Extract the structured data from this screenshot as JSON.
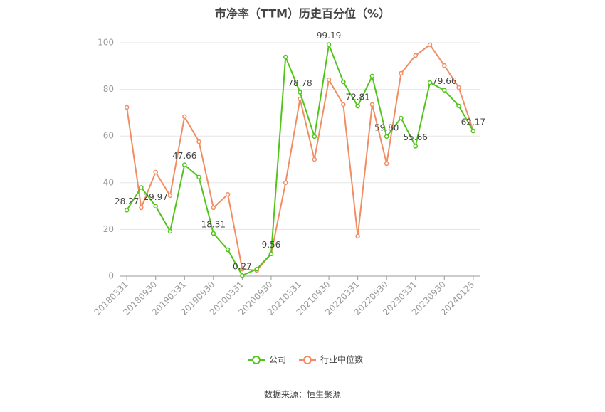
{
  "chart_data": {
    "type": "line",
    "title": "市净率（TTM）历史百分位（%）",
    "source": "数据来源：恒生聚源",
    "categories": [
      "20180331",
      null,
      "20180930",
      null,
      "20190331",
      null,
      "20190930",
      null,
      "20200331",
      null,
      "20200930",
      null,
      "20210331",
      null,
      "20210930",
      null,
      "20220331",
      null,
      "20220930",
      null,
      "20230331",
      null,
      "20230930",
      null,
      "20240125"
    ],
    "series": [
      {
        "name": "公司",
        "color": "#52c41a",
        "values": [
          28.27,
          38,
          29.97,
          19.2,
          47.66,
          42.4,
          18.31,
          11.3,
          0.27,
          3,
          9.56,
          93.9,
          78.78,
          59.8,
          99.19,
          83.2,
          72.81,
          85.7,
          59.8,
          67.7,
          55.66,
          82.9,
          79.66,
          72.9,
          62.17
        ],
        "value_labels": [
          "28.27",
          null,
          "29.97",
          null,
          "47.66",
          null,
          "18.31",
          null,
          "0.27",
          null,
          "9.56",
          null,
          "78.78",
          null,
          "99.19",
          null,
          "72.81",
          null,
          "59.80",
          null,
          "55.66",
          null,
          "79.66",
          null,
          "62.17"
        ]
      },
      {
        "name": "行业中位数",
        "color": "#f28c62",
        "values": [
          72.3,
          29.3,
          44.5,
          34.5,
          68.3,
          57.6,
          29.3,
          35,
          3,
          2.4,
          9.5,
          40,
          75.9,
          50,
          84.1,
          73.5,
          17.1,
          73.5,
          48.2,
          86.9,
          94.5,
          99.1,
          90.2,
          80.8,
          62.2
        ]
      }
    ],
    "ylim": [
      0,
      100
    ],
    "yticks": [
      0,
      20,
      40,
      60,
      80,
      100
    ],
    "grid": true,
    "legend": "bottom"
  }
}
